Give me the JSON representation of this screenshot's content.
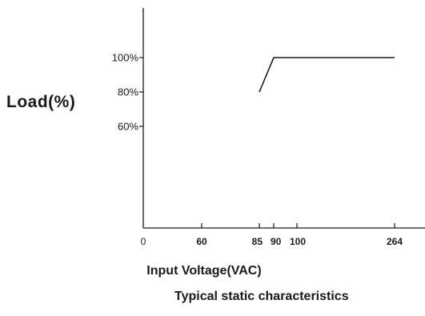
{
  "chart_data": {
    "type": "line",
    "title": "Typical static characteristics",
    "xlabel": "Input Voltage(VAC)",
    "ylabel": "Load(%)",
    "x_ticks": [
      {
        "value": 0,
        "label": "0"
      },
      {
        "value": 60,
        "label": "60"
      },
      {
        "value": 85,
        "label": "85"
      },
      {
        "value": 90,
        "label": "90"
      },
      {
        "value": 100,
        "label": "100"
      },
      {
        "value": 264,
        "label": "264"
      }
    ],
    "y_ticks": [
      {
        "value": 60,
        "label": "60%"
      },
      {
        "value": 80,
        "label": "80%"
      },
      {
        "value": 100,
        "label": "100%"
      }
    ],
    "series": [
      {
        "x": [
          85,
          90,
          264
        ],
        "y": [
          80,
          100,
          100
        ]
      }
    ],
    "line_color": "#1a1a1a",
    "grid": false
  }
}
